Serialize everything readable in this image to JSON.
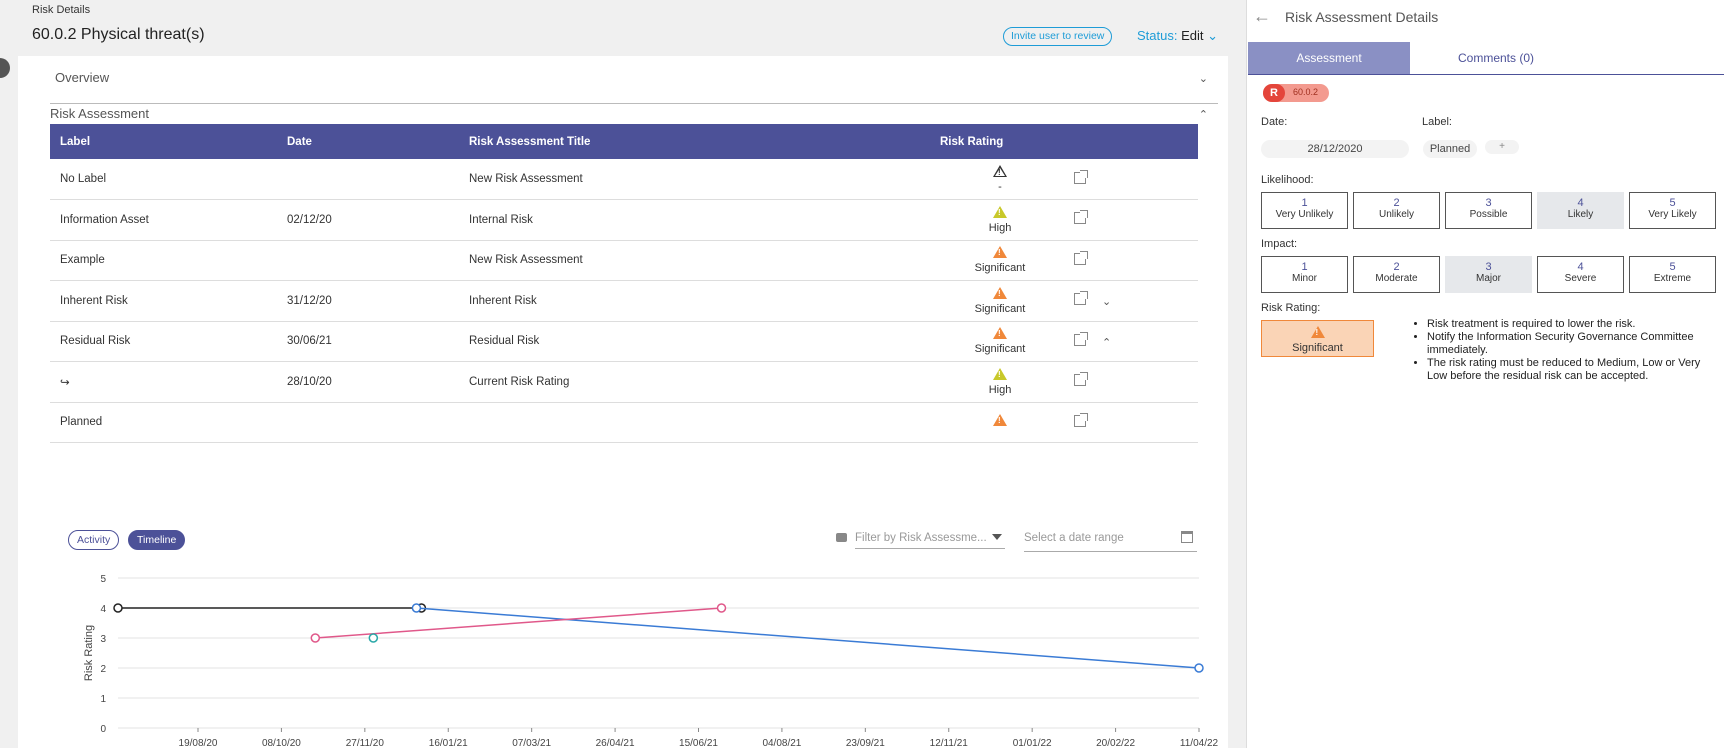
{
  "breadcrumb": "Risk Details",
  "page_title": "60.0.2 Physical threat(s)",
  "invite_label": "Invite user to review",
  "status": {
    "label": "Status:",
    "value": "Edit"
  },
  "overview_label": "Overview",
  "risk_assessment_label": "Risk Assessment",
  "table": {
    "headers": [
      "Label",
      "Date",
      "Risk Assessment Title",
      "Risk Rating"
    ],
    "rows": [
      {
        "label": "No Label",
        "date": "",
        "title": "New Risk Assessment",
        "rating": "-",
        "icon": "outline"
      },
      {
        "label": "Information Asset",
        "date": "02/12/20",
        "title": "Internal Risk",
        "rating": "High",
        "icon": "yellow"
      },
      {
        "label": "Example",
        "date": "",
        "title": "New Risk Assessment",
        "rating": "Significant",
        "icon": "orange"
      },
      {
        "label": "Inherent Risk",
        "date": "31/12/20",
        "title": "Inherent Risk",
        "rating": "Significant",
        "icon": "orange",
        "expand": "⌄"
      },
      {
        "label": "Residual Risk",
        "date": "30/06/21",
        "title": "Residual Risk",
        "rating": "Significant",
        "icon": "orange",
        "expand": "⌃"
      },
      {
        "label": "↪",
        "date": "28/10/20",
        "title": "Current Risk Rating",
        "rating": "High",
        "icon": "yellow"
      },
      {
        "label": "Planned",
        "date": "",
        "title": "",
        "rating": "",
        "icon": "orange"
      }
    ]
  },
  "toggle": {
    "activity": "Activity",
    "timeline": "Timeline"
  },
  "filter_placeholder": "Filter by Risk Assessme...",
  "date_range_placeholder": "Select a date range",
  "chart_data": {
    "type": "line",
    "ylabel": "Risk Rating",
    "ylim": [
      0,
      5
    ],
    "yticks": [
      0,
      1,
      2,
      3,
      4,
      5
    ],
    "xticks": [
      "19/08/20",
      "08/10/20",
      "27/11/20",
      "16/01/21",
      "07/03/21",
      "26/04/21",
      "15/06/21",
      "04/08/21",
      "23/09/21",
      "12/11/21",
      "01/01/22",
      "20/02/22",
      "11/04/22"
    ],
    "xrange": [
      "2020-07-01",
      "2022-04-14"
    ],
    "series": [
      {
        "color": "#222222",
        "points": [
          [
            "2020-07-01",
            4
          ],
          [
            "2020-12-31",
            4
          ]
        ]
      },
      {
        "color": "#3a7bd5",
        "points": [
          [
            "2020-12-28",
            4
          ],
          [
            "2022-04-14",
            2
          ]
        ]
      },
      {
        "color": "#e0588a",
        "points": [
          [
            "2020-10-28",
            3
          ],
          [
            "2021-06-30",
            4
          ]
        ]
      },
      {
        "color": "#2aa8a8",
        "points": [
          [
            "2020-12-02",
            3
          ]
        ]
      }
    ]
  },
  "panel": {
    "title": "Risk Assessment Details",
    "tabs": [
      "Assessment",
      "Comments (0)"
    ],
    "badge_letter": "R",
    "badge_number": "60.0.2",
    "date_label": "Date:",
    "date_value": "28/12/2020",
    "label_label": "Label:",
    "label_value": "Planned",
    "plus": "+",
    "likelihood_label": "Likelihood:",
    "likelihood": [
      {
        "n": "1",
        "t": "Very Unlikely"
      },
      {
        "n": "2",
        "t": "Unlikely"
      },
      {
        "n": "3",
        "t": "Possible"
      },
      {
        "n": "4",
        "t": "Likely"
      },
      {
        "n": "5",
        "t": "Very Likely"
      }
    ],
    "likelihood_selected": 4,
    "impact_label": "Impact:",
    "impact": [
      {
        "n": "1",
        "t": "Minor"
      },
      {
        "n": "2",
        "t": "Moderate"
      },
      {
        "n": "3",
        "t": "Major"
      },
      {
        "n": "4",
        "t": "Severe"
      },
      {
        "n": "5",
        "t": "Extreme"
      }
    ],
    "impact_selected": 3,
    "rating_label": "Risk Rating:",
    "rating_value": "Significant",
    "notes": [
      "Risk treatment is required to lower the risk.",
      "Notify the Information Security Governance Committee immediately.",
      "The risk rating must be reduced to Medium, Low or Very Low before the residual risk can be accepted."
    ]
  }
}
